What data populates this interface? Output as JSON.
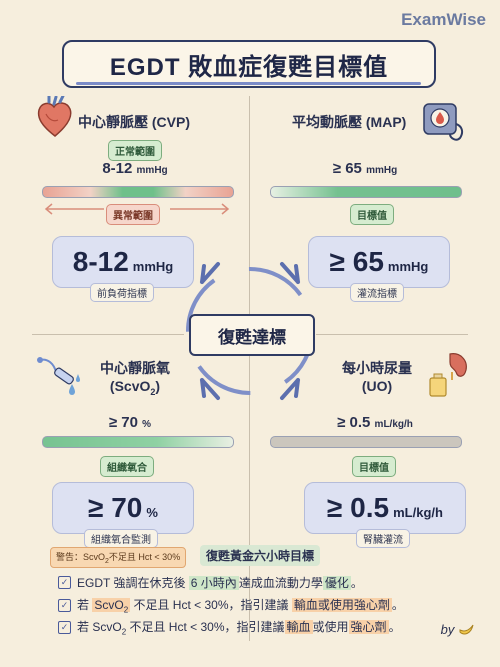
{
  "brand": "ExamWise",
  "title": "EGDT 敗血症復甦目標值",
  "center_label": "復甦達標",
  "cvp": {
    "title": "中心靜脈壓 (CVP)",
    "normal_range_label": "正常範圍",
    "value": "8-12",
    "unit": "mmHg",
    "abnormal_range_label": "異常範圍",
    "card_value": "8-12",
    "card_unit": "mmHg",
    "card_tag": "前負荷指標"
  },
  "map": {
    "title": "平均動脈壓 (MAP)",
    "value": "≥ 65",
    "unit": "mmHg",
    "target_label": "目標值",
    "card_value": "≥ 65",
    "card_unit": "mmHg",
    "card_tag": "灌流指標"
  },
  "scvo2": {
    "title_line1": "中心靜脈氧",
    "title_line2_pre": "(ScvO",
    "title_line2_sub": "2",
    "title_line2_post": ")",
    "value": "≥ 70",
    "unit": "%",
    "target_label": "組織氧合",
    "card_value": "≥ 70",
    "card_unit": "%",
    "card_tag": "組織氧合監測"
  },
  "uo": {
    "title_line1": "每小時尿量",
    "title_line2": "(UO)",
    "value": "≥ 0.5",
    "unit": "mL/kg/h",
    "target_label": "目標值",
    "card_value": "≥ 0.5",
    "card_unit": "mL/kg/h",
    "card_tag": "腎臟灌流"
  },
  "warning": {
    "pre": "警告：ScvO",
    "sub": "2",
    "post": "不足且 Hct < 30%"
  },
  "golden_label": "復甦黃金六小時目標",
  "notes": {
    "n1_a": "EGDT 強調在休克後 ",
    "n1_b": "6 小時內",
    "n1_c": "達成血流動力學",
    "n1_d": "優化",
    "n1_e": "。",
    "n2_a": "若 ",
    "n2_b": "ScvO",
    "n2_sub": "2",
    "n2_c": " 不足且 Hct < 30%，指引建議 ",
    "n2_d": "輸血或使用強心劑",
    "n2_e": "。",
    "n3_a": "若 ScvO",
    "n3_sub": "2",
    "n3_b": " 不足且 Hct < 30%，指引建議",
    "n3_c": "輸血",
    "n3_d": "或使用",
    "n3_e": "強心劑",
    "n3_f": "。"
  },
  "byline": "by"
}
